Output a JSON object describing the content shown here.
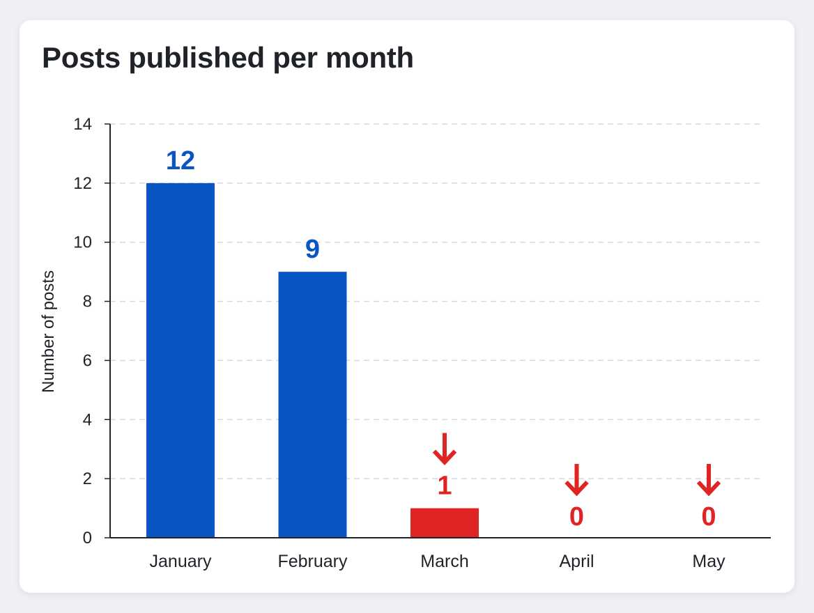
{
  "chart_data": {
    "type": "bar",
    "title": "Posts published per month",
    "ylabel": "Number of posts",
    "xlabel": "",
    "categories": [
      "January",
      "February",
      "March",
      "April",
      "May"
    ],
    "values": [
      12,
      9,
      1,
      0,
      0
    ],
    "data_labels": [
      "12",
      "9",
      "1",
      "0",
      "0"
    ],
    "ylim": [
      0,
      14
    ],
    "yticks": [
      0,
      2,
      4,
      6,
      8,
      10,
      12,
      14
    ],
    "ytick_labels": [
      "0",
      "2",
      "4",
      "6",
      "8",
      "10",
      "12",
      "14"
    ],
    "grid": true,
    "highlight": {
      "categories": [
        "March",
        "April",
        "May"
      ],
      "marker": "down-arrow"
    },
    "colors": {
      "normal": "#0a55c4",
      "highlight": "#e02424",
      "normal_label": "#0a55c4",
      "highlight_label": "#e02424",
      "axis": "#1f2328",
      "grid": "#d5d8dc"
    }
  }
}
